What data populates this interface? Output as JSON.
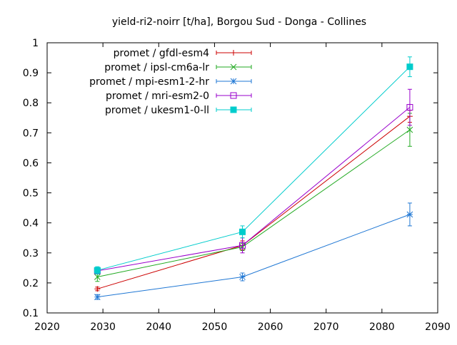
{
  "chart_data": {
    "type": "line",
    "title": "yield-ri2-noirr [t/ha], Borgou Sud - Donga - Collines",
    "xlabel": "",
    "ylabel": "",
    "xlim": [
      2020,
      2090
    ],
    "ylim": [
      0.1,
      1.0
    ],
    "x_ticks": [
      2020,
      2030,
      2040,
      2050,
      2060,
      2070,
      2080,
      2090
    ],
    "y_ticks": [
      0.1,
      0.2,
      0.3,
      0.4,
      0.5,
      0.6,
      0.7,
      0.8,
      0.9,
      1.0
    ],
    "x_tick_labels": [
      "2020",
      "2030",
      "2040",
      "2050",
      "2060",
      "2070",
      "2080",
      "2090"
    ],
    "y_tick_labels": [
      "0.1",
      "0.2",
      "0.3",
      "0.4",
      "0.5",
      "0.6",
      "0.7",
      "0.8",
      "0.9",
      "1"
    ],
    "grid": false,
    "legend_position": "top-left",
    "x": [
      2029,
      2055,
      2085
    ],
    "series": [
      {
        "name": "promet / gfdl-esm4",
        "color": "#cc0000",
        "marker": "plus",
        "values": [
          0.18,
          0.325,
          0.755
        ],
        "errors": [
          0.006,
          0.015,
          0.02
        ]
      },
      {
        "name": "promet / ipsl-cm6a-lr",
        "color": "#22aa22",
        "marker": "cross",
        "values": [
          0.22,
          0.32,
          0.71
        ],
        "errors": [
          0.015,
          0.012,
          0.055
        ]
      },
      {
        "name": "promet / mpi-esm1-2-hr",
        "color": "#1f77d4",
        "marker": "star",
        "values": [
          0.153,
          0.22,
          0.428
        ],
        "errors": [
          0.008,
          0.013,
          0.038
        ]
      },
      {
        "name": "promet / mri-esm2-0",
        "color": "#9900cc",
        "marker": "open-square",
        "values": [
          0.24,
          0.325,
          0.785
        ],
        "errors": [
          0.01,
          0.025,
          0.06
        ]
      },
      {
        "name": "promet / ukesm1-0-ll",
        "color": "#00cccc",
        "marker": "filled-square",
        "values": [
          0.242,
          0.37,
          0.92
        ],
        "errors": [
          0.012,
          0.02,
          0.033
        ]
      }
    ]
  }
}
